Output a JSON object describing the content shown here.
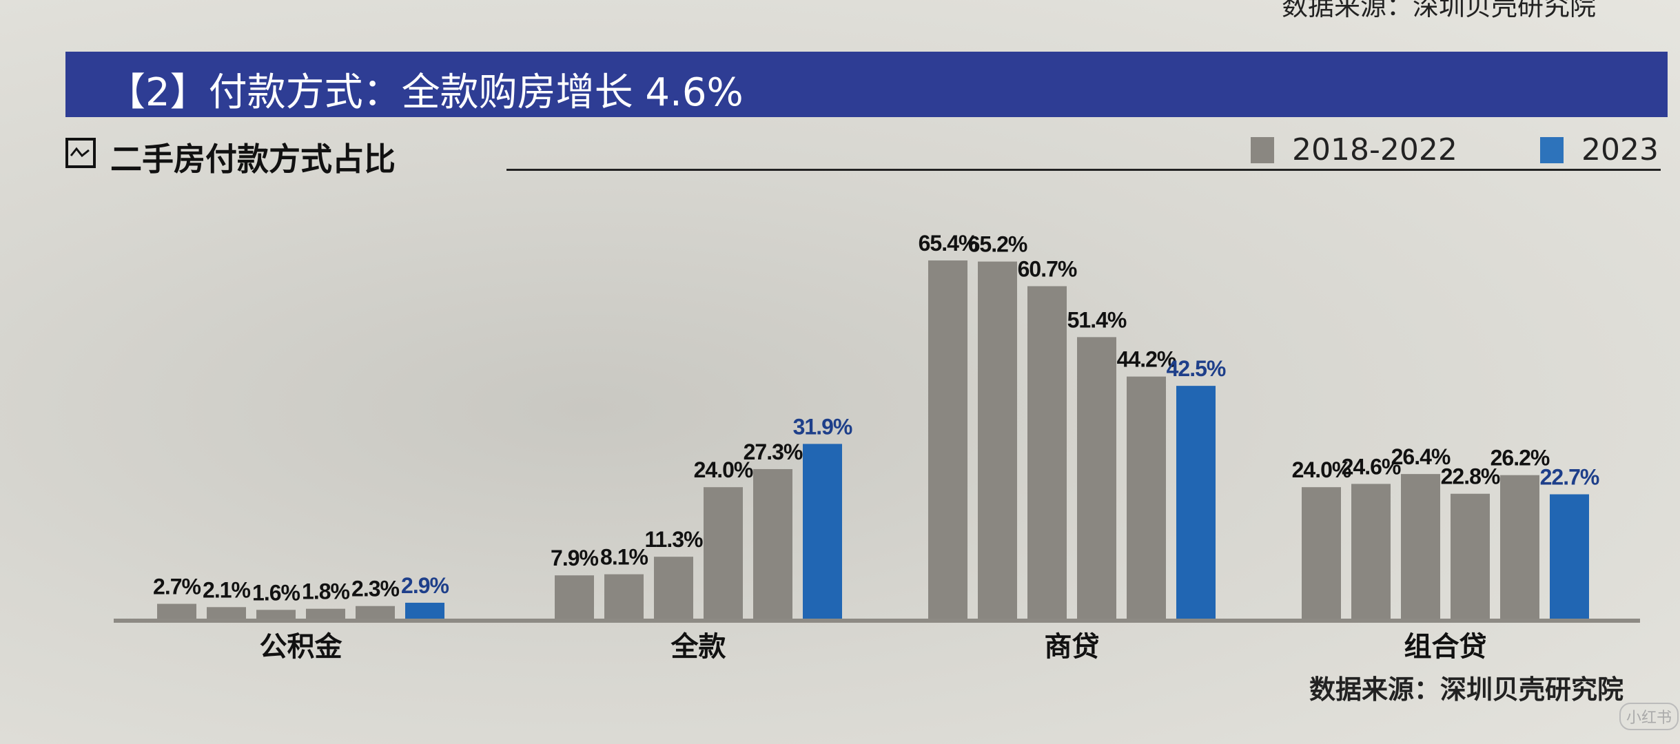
{
  "header": {
    "top_source_partial": "数据来源：深圳贝壳研究院",
    "banner_title": "【2】付款方式：全款购房增长 4.6%",
    "subtitle": "二手房付款方式占比",
    "source": "数据来源：深圳贝壳研究院",
    "watermark": "小红书"
  },
  "colors": {
    "banner": "#2e3d94",
    "gray_series": "#8a8781",
    "blue_series": "#2166b3"
  },
  "chart_data": {
    "type": "bar",
    "title": "二手房付款方式占比",
    "categories": [
      "公积金",
      "全款",
      "商贷",
      "组合贷"
    ],
    "legend": [
      {
        "label": "2018-2022",
        "color": "#8a8781"
      },
      {
        "label": "2023",
        "color": "#2166b3"
      }
    ],
    "legend_position": "top-right",
    "grid": false,
    "unit": "%",
    "groups": [
      {
        "category": "公积金",
        "values": [
          2.7,
          2.1,
          1.6,
          1.8,
          2.3,
          2.9
        ],
        "labels": [
          "2.7%",
          "2.1%",
          "1.6%",
          "1.8%",
          "2.3%",
          "2.9%"
        ]
      },
      {
        "category": "全款",
        "values": [
          7.9,
          8.1,
          11.3,
          24.0,
          27.3,
          31.9
        ],
        "labels": [
          "7.9%",
          "8.1%",
          "11.3%",
          "24.0%",
          "27.3%",
          "31.9%"
        ]
      },
      {
        "category": "商贷",
        "values": [
          65.4,
          65.2,
          60.7,
          51.4,
          44.2,
          42.5
        ],
        "labels": [
          "65.4%",
          "65.2%",
          "60.7%",
          "51.4%",
          "44.2%",
          "42.5%"
        ]
      },
      {
        "category": "组合贷",
        "values": [
          24.0,
          24.6,
          26.4,
          22.8,
          26.2,
          22.7
        ],
        "labels": [
          "24.0%",
          "24.6%",
          "26.4%",
          "22.8%",
          "26.2%",
          "22.7%"
        ]
      }
    ],
    "bar_years": [
      "2018",
      "2019",
      "2020",
      "2021",
      "2022",
      "2023"
    ],
    "ylim": [
      0,
      70
    ]
  }
}
